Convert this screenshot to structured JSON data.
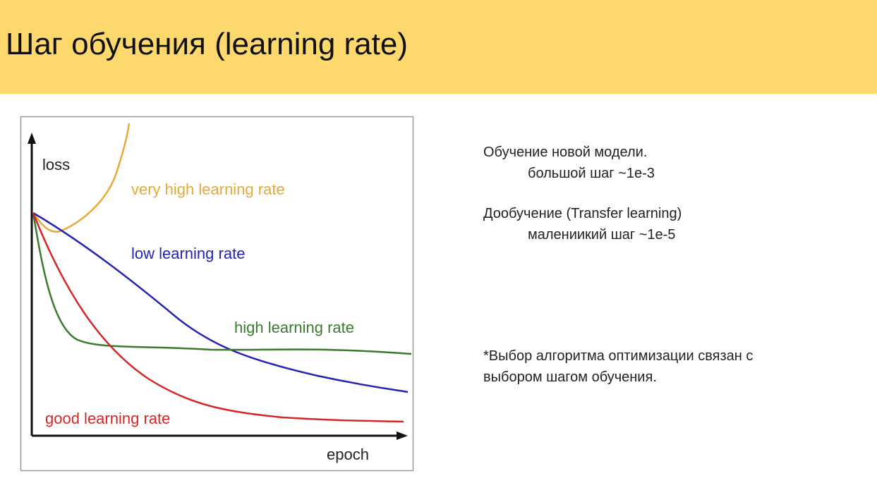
{
  "header": {
    "title": "Шаг обучения (learning rate)"
  },
  "figure": {
    "y_axis_label": "loss",
    "x_axis_label": "epoch",
    "curve_labels": [
      "very high learning rate",
      "low learning rate",
      "high learning rate",
      "good learning rate"
    ]
  },
  "notes": [
    {
      "lines": [
        "Обучение новой модели.",
        "большой шаг ~1e-3"
      ]
    },
    {
      "lines": [
        "Дообучение (Transfer learning)",
        "малениикий шаг ~1e-5"
      ]
    },
    {
      "lines": [
        "*Выбор алгоритма оптимизации связан с",
        "выбором шагом обучения."
      ]
    }
  ]
}
